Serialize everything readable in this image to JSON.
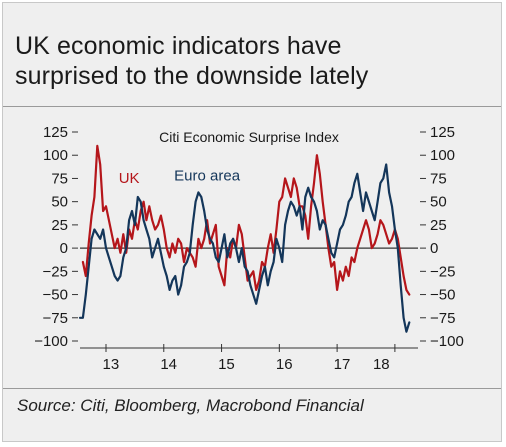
{
  "title_lines": [
    "UK economic indicators have",
    "surprised to the downside lately"
  ],
  "source": "Source: Citi, Bloomberg, Macrobond Financial",
  "chart_data": {
    "type": "line",
    "title": "Citi Economic Surprise Index",
    "ylim": [
      -100,
      125
    ],
    "yticks": [
      125,
      100,
      75,
      50,
      25,
      0,
      -25,
      -50,
      -75,
      -100
    ],
    "yticklabels": [
      "125",
      "100",
      "75",
      "50",
      "25",
      "0",
      "−25",
      "−50",
      "−75",
      "−100"
    ],
    "xlim": [
      2012.55,
      2018.4
    ],
    "xticks": [
      2013,
      2014,
      2015,
      2016,
      2017,
      2018
    ],
    "xticklabels": [
      "13",
      "14",
      "15",
      "16",
      "17",
      "18"
    ],
    "zero_line": true,
    "series": [
      {
        "name": "UK",
        "color": "#b5161b",
        "x": [
          2012.6,
          2012.65,
          2012.7,
          2012.75,
          2012.8,
          2012.85,
          2012.9,
          2012.95,
          2013.0,
          2013.05,
          2013.1,
          2013.15,
          2013.2,
          2013.25,
          2013.3,
          2013.35,
          2013.4,
          2013.45,
          2013.5,
          2013.55,
          2013.6,
          2013.65,
          2013.7,
          2013.75,
          2013.8,
          2013.85,
          2013.9,
          2013.95,
          2014.0,
          2014.05,
          2014.1,
          2014.15,
          2014.2,
          2014.25,
          2014.3,
          2014.35,
          2014.4,
          2014.45,
          2014.5,
          2014.55,
          2014.6,
          2014.65,
          2014.7,
          2014.75,
          2014.8,
          2014.85,
          2014.9,
          2014.95,
          2015.0,
          2015.05,
          2015.1,
          2015.15,
          2015.2,
          2015.25,
          2015.3,
          2015.35,
          2015.4,
          2015.45,
          2015.5,
          2015.55,
          2015.6,
          2015.65,
          2015.7,
          2015.75,
          2015.8,
          2015.85,
          2015.9,
          2015.95,
          2016.0,
          2016.05,
          2016.1,
          2016.15,
          2016.2,
          2016.25,
          2016.3,
          2016.35,
          2016.4,
          2016.45,
          2016.5,
          2016.55,
          2016.6,
          2016.65,
          2016.7,
          2016.75,
          2016.8,
          2016.85,
          2016.9,
          2016.95,
          2017.0,
          2017.05,
          2017.1,
          2017.15,
          2017.2,
          2017.25,
          2017.3,
          2017.35,
          2017.4,
          2017.45,
          2017.5,
          2017.55,
          2017.6,
          2017.65,
          2017.7,
          2017.75,
          2017.8,
          2017.85,
          2017.9,
          2017.95,
          2018.0,
          2018.05,
          2018.1,
          2018.15,
          2018.2,
          2018.25
        ],
        "y": [
          -15,
          -30,
          5,
          35,
          55,
          110,
          90,
          40,
          45,
          30,
          15,
          0,
          10,
          -5,
          15,
          -5,
          20,
          10,
          30,
          20,
          40,
          50,
          30,
          45,
          30,
          20,
          25,
          35,
          20,
          0,
          -10,
          5,
          -5,
          10,
          5,
          -15,
          0,
          -5,
          -10,
          -20,
          10,
          0,
          10,
          30,
          5,
          15,
          25,
          -20,
          -30,
          -40,
          0,
          -10,
          10,
          0,
          25,
          15,
          -10,
          -35,
          -30,
          -25,
          -45,
          -35,
          -15,
          -20,
          0,
          15,
          -5,
          20,
          50,
          55,
          75,
          65,
          55,
          75,
          65,
          45,
          45,
          35,
          10,
          45,
          70,
          100,
          80,
          50,
          25,
          0,
          -20,
          -15,
          -45,
          -25,
          -35,
          -20,
          -30,
          -10,
          -15,
          0,
          10,
          20,
          30,
          20,
          0,
          5,
          15,
          30,
          25,
          15,
          5,
          10,
          20,
          10,
          -10,
          -30,
          -45,
          -50
        ]
      },
      {
        "name": "Euro area",
        "color": "#14365a",
        "x": [
          2012.55,
          2012.6,
          2012.65,
          2012.7,
          2012.75,
          2012.8,
          2012.85,
          2012.9,
          2012.95,
          2013.0,
          2013.05,
          2013.1,
          2013.15,
          2013.2,
          2013.25,
          2013.3,
          2013.35,
          2013.4,
          2013.45,
          2013.5,
          2013.55,
          2013.6,
          2013.65,
          2013.7,
          2013.75,
          2013.8,
          2013.85,
          2013.9,
          2013.95,
          2014.0,
          2014.05,
          2014.1,
          2014.15,
          2014.2,
          2014.25,
          2014.3,
          2014.35,
          2014.4,
          2014.45,
          2014.5,
          2014.55,
          2014.6,
          2014.65,
          2014.7,
          2014.75,
          2014.8,
          2014.85,
          2014.9,
          2014.95,
          2015.0,
          2015.05,
          2015.1,
          2015.15,
          2015.2,
          2015.25,
          2015.3,
          2015.35,
          2015.4,
          2015.45,
          2015.5,
          2015.55,
          2015.6,
          2015.65,
          2015.7,
          2015.75,
          2015.8,
          2015.85,
          2015.9,
          2015.95,
          2016.0,
          2016.05,
          2016.1,
          2016.15,
          2016.2,
          2016.25,
          2016.3,
          2016.35,
          2016.4,
          2016.45,
          2016.5,
          2016.55,
          2016.6,
          2016.65,
          2016.7,
          2016.75,
          2016.8,
          2016.85,
          2016.9,
          2016.95,
          2017.0,
          2017.05,
          2017.1,
          2017.15,
          2017.2,
          2017.25,
          2017.3,
          2017.35,
          2017.4,
          2017.45,
          2017.5,
          2017.55,
          2017.6,
          2017.65,
          2017.7,
          2017.75,
          2017.8,
          2017.85,
          2017.9,
          2017.95,
          2018.0,
          2018.05,
          2018.1,
          2018.15,
          2018.2,
          2018.25
        ],
        "y": [
          -75,
          -75,
          -50,
          -20,
          10,
          20,
          15,
          10,
          20,
          0,
          -10,
          -20,
          -30,
          -35,
          -30,
          -10,
          0,
          30,
          40,
          25,
          55,
          50,
          30,
          20,
          10,
          -10,
          0,
          10,
          -5,
          -20,
          -30,
          -45,
          -35,
          -30,
          -50,
          -40,
          -20,
          -15,
          -5,
          25,
          50,
          60,
          55,
          40,
          20,
          10,
          5,
          -10,
          -15,
          0,
          15,
          -10,
          5,
          10,
          0,
          -15,
          0,
          -20,
          -25,
          -40,
          -50,
          -60,
          -45,
          -30,
          -20,
          -40,
          -25,
          -15,
          10,
          0,
          -15,
          25,
          40,
          50,
          45,
          35,
          45,
          20,
          55,
          65,
          55,
          50,
          40,
          20,
          30,
          25,
          10,
          -5,
          -10,
          5,
          20,
          25,
          35,
          50,
          55,
          70,
          80,
          60,
          40,
          60,
          50,
          40,
          30,
          50,
          70,
          75,
          90,
          60,
          45,
          20,
          0,
          -40,
          -75,
          -90,
          -80
        ]
      }
    ],
    "annotations": [
      {
        "text": "UK",
        "series": "UK",
        "x": 2013.4,
        "y": 70
      },
      {
        "text": "Euro area",
        "series": "Euro area",
        "x": 2014.75,
        "y": 73
      }
    ]
  }
}
